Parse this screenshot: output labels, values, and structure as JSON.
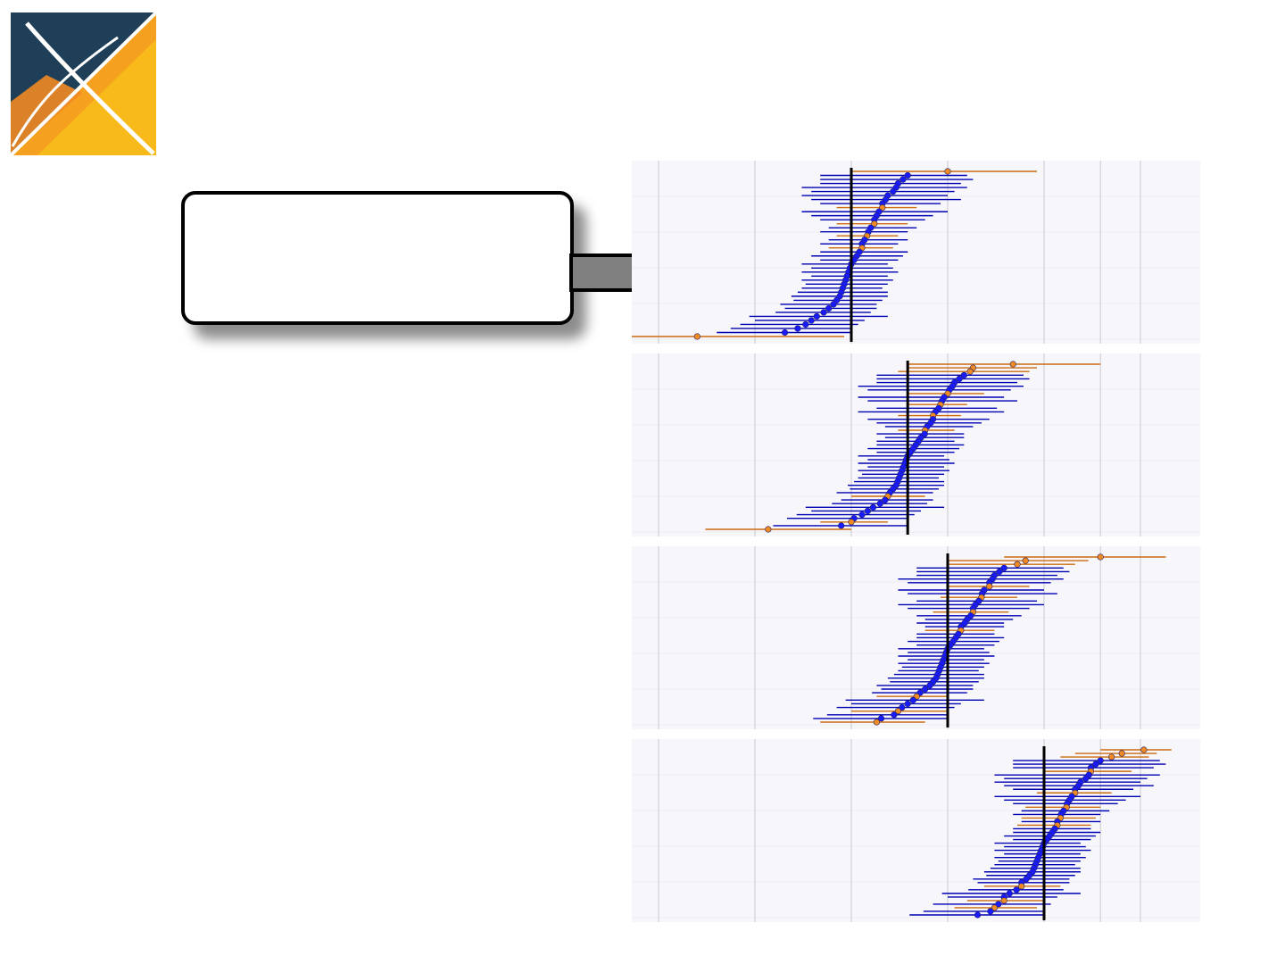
{
  "slide": {
    "callout_text": ""
  },
  "logo": {
    "icon": "ohdsi-logo-icon",
    "colors": {
      "dark": "#1e3f57",
      "orange": "#f08a24",
      "yellow": "#f7b81c"
    }
  },
  "arrow": {
    "icon": "right-arrow-icon",
    "color": "#808080"
  },
  "colors": {
    "panel_bg": "#f7f7fb",
    "grid": "#c8c8cc",
    "negative_control": "#1a1aff",
    "negative_control_line": "#0000b3",
    "positive_control": "#f08a24",
    "positive_control_line": "#cc6a10",
    "true_effect_line": "#000000"
  },
  "chart_data": {
    "type": "scatter",
    "subtype": "forest-plot-panels",
    "title": "",
    "xlabel": "",
    "ylabel": "",
    "x_scale": "log",
    "xlim": [
      0.25,
      10
    ],
    "vertical_gridlines": [
      0.25,
      0.5,
      1,
      2,
      4,
      6,
      8
    ],
    "grid": true,
    "legend": "none",
    "series_roles": [
      "negative_control",
      "positive_control"
    ],
    "panels": [
      {
        "true_effect": 1,
        "positive_controls": [
          {
            "est": 2.0,
            "lo": 1.0,
            "hi": 3.8
          },
          {
            "est": 1.25,
            "lo": 0.9,
            "hi": 1.6
          },
          {
            "est": 1.18,
            "lo": 0.9,
            "hi": 1.5
          },
          {
            "est": 1.12,
            "lo": 0.9,
            "hi": 1.4
          },
          {
            "est": 1.08,
            "lo": 0.85,
            "hi": 1.35
          },
          {
            "est": 0.33,
            "lo": 0.2,
            "hi": 0.95
          }
        ]
      },
      {
        "true_effect": 1.5,
        "positive_controls": [
          {
            "est": 3.2,
            "lo": 1.5,
            "hi": 6.0
          },
          {
            "est": 2.35,
            "lo": 1.4,
            "hi": 3.6
          },
          {
            "est": 2.4,
            "lo": 1.5,
            "hi": 3.8
          },
          {
            "est": 2.0,
            "lo": 1.5,
            "hi": 2.6
          },
          {
            "est": 1.9,
            "lo": 1.5,
            "hi": 2.3
          },
          {
            "est": 1.8,
            "lo": 1.4,
            "hi": 2.2
          },
          {
            "est": 1.7,
            "lo": 1.4,
            "hi": 2.1
          },
          {
            "est": 1.3,
            "lo": 1.0,
            "hi": 1.7
          },
          {
            "est": 1.0,
            "lo": 0.8,
            "hi": 1.3
          },
          {
            "est": 0.55,
            "lo": 0.35,
            "hi": 1.0
          }
        ]
      },
      {
        "true_effect": 2,
        "positive_controls": [
          {
            "est": 6.0,
            "lo": 3.0,
            "hi": 9.6
          },
          {
            "est": 3.5,
            "lo": 2.0,
            "hi": 5.5
          },
          {
            "est": 3.3,
            "lo": 2.0,
            "hi": 5.0
          },
          {
            "est": 2.7,
            "lo": 2.0,
            "hi": 3.6
          },
          {
            "est": 2.55,
            "lo": 1.9,
            "hi": 3.3
          },
          {
            "est": 2.4,
            "lo": 1.8,
            "hi": 3.1
          },
          {
            "est": 2.2,
            "lo": 1.7,
            "hi": 2.8
          },
          {
            "est": 1.6,
            "lo": 1.2,
            "hi": 2.0
          },
          {
            "est": 1.4,
            "lo": 1.0,
            "hi": 2.0
          },
          {
            "est": 1.2,
            "lo": 0.8,
            "hi": 1.7
          }
        ]
      },
      {
        "true_effect": 4,
        "positive_controls": [
          {
            "est": 8.2,
            "lo": 6.0,
            "hi": 10.0
          },
          {
            "est": 7.0,
            "lo": 5.0,
            "hi": 9.0
          },
          {
            "est": 6.5,
            "lo": 4.5,
            "hi": 8.5
          },
          {
            "est": 5.6,
            "lo": 4.0,
            "hi": 7.5
          },
          {
            "est": 5.0,
            "lo": 3.8,
            "hi": 6.5
          },
          {
            "est": 4.7,
            "lo": 3.5,
            "hi": 6.0
          },
          {
            "est": 4.5,
            "lo": 3.4,
            "hi": 5.8
          },
          {
            "est": 4.4,
            "lo": 3.3,
            "hi": 5.6
          },
          {
            "est": 3.4,
            "lo": 2.6,
            "hi": 4.5
          },
          {
            "est": 3.0,
            "lo": 2.3,
            "hi": 4.0
          },
          {
            "est": 2.8,
            "lo": 2.1,
            "hi": 3.8
          }
        ]
      }
    ],
    "negative_controls": [
      {
        "est": 1.5,
        "lo": 0.8,
        "hi": 2.3
      },
      {
        "est": 1.45,
        "lo": 0.8,
        "hi": 2.4
      },
      {
        "est": 1.4,
        "lo": 0.8,
        "hi": 2.2
      },
      {
        "est": 1.38,
        "lo": 0.7,
        "hi": 2.3
      },
      {
        "est": 1.35,
        "lo": 0.75,
        "hi": 2.1
      },
      {
        "est": 1.3,
        "lo": 0.7,
        "hi": 2.0
      },
      {
        "est": 1.28,
        "lo": 0.75,
        "hi": 2.2
      },
      {
        "est": 1.25,
        "lo": 0.8,
        "hi": 1.9
      },
      {
        "est": 1.22,
        "lo": 0.7,
        "hi": 2.0
      },
      {
        "est": 1.2,
        "lo": 0.75,
        "hi": 1.8
      },
      {
        "est": 1.18,
        "lo": 0.8,
        "hi": 1.7
      },
      {
        "est": 1.15,
        "lo": 0.85,
        "hi": 1.6
      },
      {
        "est": 1.13,
        "lo": 0.8,
        "hi": 1.5
      },
      {
        "est": 1.1,
        "lo": 0.85,
        "hi": 1.5
      },
      {
        "est": 1.08,
        "lo": 0.8,
        "hi": 1.4
      },
      {
        "est": 1.06,
        "lo": 0.8,
        "hi": 1.5
      },
      {
        "est": 1.04,
        "lo": 0.75,
        "hi": 1.45
      },
      {
        "est": 1.02,
        "lo": 0.8,
        "hi": 1.4
      },
      {
        "est": 1.0,
        "lo": 0.7,
        "hi": 1.3
      },
      {
        "est": 0.99,
        "lo": 0.75,
        "hi": 1.35
      },
      {
        "est": 0.98,
        "lo": 0.7,
        "hi": 1.4
      },
      {
        "est": 0.97,
        "lo": 0.75,
        "hi": 1.3
      },
      {
        "est": 0.96,
        "lo": 0.7,
        "hi": 1.35
      },
      {
        "est": 0.95,
        "lo": 0.72,
        "hi": 1.3
      },
      {
        "est": 0.94,
        "lo": 0.7,
        "hi": 1.25
      },
      {
        "est": 0.93,
        "lo": 0.68,
        "hi": 1.3
      },
      {
        "est": 0.92,
        "lo": 0.65,
        "hi": 1.3
      },
      {
        "est": 0.9,
        "lo": 0.66,
        "hi": 1.25
      },
      {
        "est": 0.88,
        "lo": 0.6,
        "hi": 1.2
      },
      {
        "est": 0.85,
        "lo": 0.62,
        "hi": 1.2
      },
      {
        "est": 0.82,
        "lo": 0.58,
        "hi": 1.15
      },
      {
        "est": 0.78,
        "lo": 0.48,
        "hi": 1.3
      },
      {
        "est": 0.75,
        "lo": 0.5,
        "hi": 1.1
      },
      {
        "est": 0.72,
        "lo": 0.45,
        "hi": 1.05
      },
      {
        "est": 0.68,
        "lo": 0.42,
        "hi": 1.0
      },
      {
        "est": 0.62,
        "lo": 0.38,
        "hi": 1.0
      }
    ]
  }
}
